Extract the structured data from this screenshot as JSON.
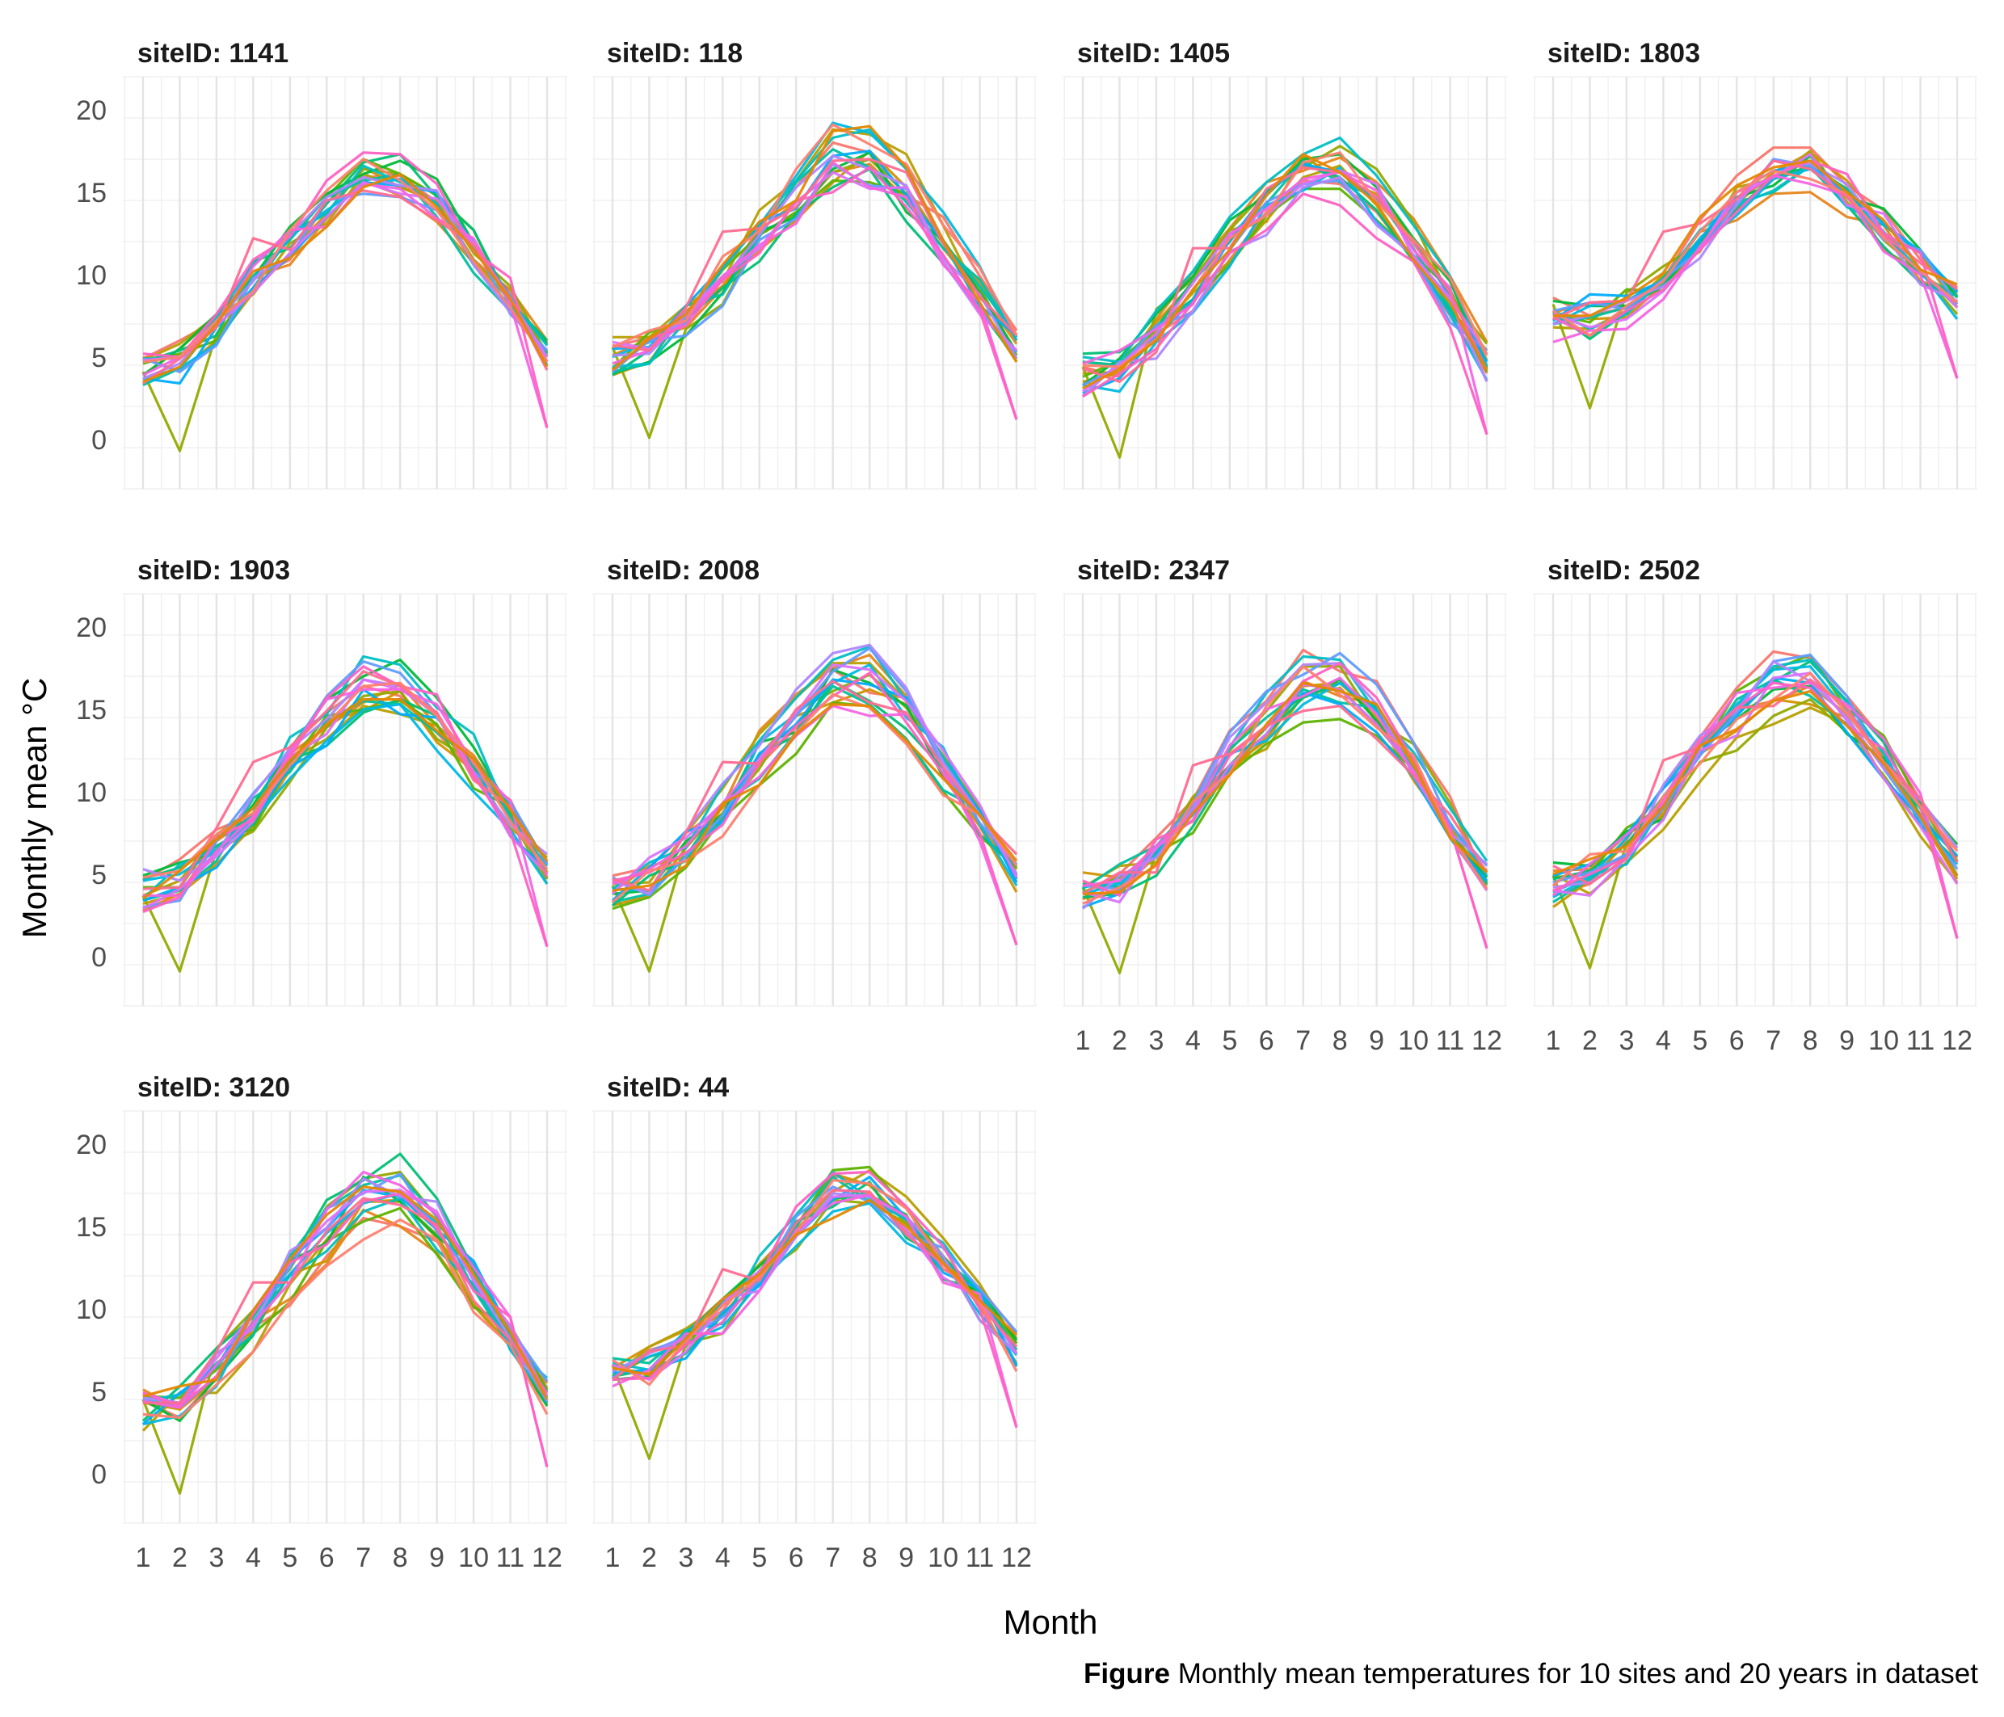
{
  "caption": {
    "bold": "Figure",
    "text": "Monthly mean temperatures for 10 sites and 20 years in dataset"
  },
  "chart_data": {
    "type": "line",
    "title": "",
    "xlabel": "Month",
    "ylabel": "Monthly mean °C",
    "xlim": [
      1,
      12
    ],
    "ylim": [
      -3,
      22
    ],
    "xticks": [
      1,
      2,
      3,
      4,
      5,
      6,
      7,
      8,
      9,
      10,
      11,
      12
    ],
    "yticks": [
      0,
      5,
      10,
      15,
      20
    ],
    "grid": true,
    "legend": "none",
    "facet_label_prefix": "siteID: ",
    "series_colors": [
      "#F8766D",
      "#E7861B",
      "#D39200",
      "#B79F00",
      "#93AA00",
      "#5EB300",
      "#00BA38",
      "#00BF74",
      "#00C19F",
      "#00BFC4",
      "#00B9E3",
      "#00ADFA",
      "#619CFF",
      "#AE87FF",
      "#DB72FB",
      "#F564E3",
      "#FF61C3",
      "#FF6C91",
      "#FF7F6F",
      "#E58700"
    ],
    "panels": [
      {
        "site": "1141",
        "base": [
          4.4,
          4.8,
          6.8,
          9.4,
          11.7,
          13.9,
          15.8,
          15.6,
          14.1,
          11.3,
          8.4,
          5.2
        ]
      },
      {
        "site": "118",
        "base": [
          5.0,
          5.6,
          7.4,
          9.8,
          12.5,
          15.0,
          17.3,
          17.4,
          15.5,
          12.3,
          9.0,
          5.7
        ]
      },
      {
        "site": "1405",
        "base": [
          3.9,
          4.4,
          6.4,
          8.8,
          11.9,
          14.2,
          16.2,
          16.4,
          14.6,
          11.6,
          8.4,
          4.8
        ]
      },
      {
        "site": "1803",
        "base": [
          7.3,
          7.4,
          8.1,
          9.8,
          12.0,
          14.2,
          16.0,
          16.4,
          15.0,
          12.8,
          10.4,
          8.2
        ]
      },
      {
        "site": "1903",
        "base": [
          4.0,
          4.6,
          6.6,
          9.0,
          12.1,
          14.6,
          16.7,
          16.8,
          14.9,
          11.7,
          8.5,
          5.1
        ]
      },
      {
        "site": "2008",
        "base": [
          4.0,
          4.6,
          6.6,
          9.0,
          12.1,
          14.6,
          16.8,
          16.8,
          14.9,
          11.8,
          8.5,
          5.2
        ]
      },
      {
        "site": "2347",
        "base": [
          4.0,
          4.5,
          6.4,
          8.8,
          11.9,
          14.3,
          16.4,
          16.4,
          14.6,
          11.5,
          8.3,
          5.0
        ]
      },
      {
        "site": "2502",
        "base": [
          4.4,
          4.8,
          6.7,
          9.1,
          12.0,
          14.2,
          16.2,
          16.3,
          14.6,
          11.7,
          8.7,
          5.6
        ]
      },
      {
        "site": "3120",
        "base": [
          3.7,
          4.3,
          6.2,
          8.8,
          11.9,
          14.4,
          16.5,
          16.6,
          14.7,
          11.5,
          8.3,
          4.9
        ]
      },
      {
        "site": "44",
        "base": [
          6.2,
          6.4,
          7.6,
          9.6,
          12.1,
          14.5,
          16.6,
          16.8,
          15.1,
          12.6,
          10.1,
          7.3
        ]
      }
    ]
  }
}
